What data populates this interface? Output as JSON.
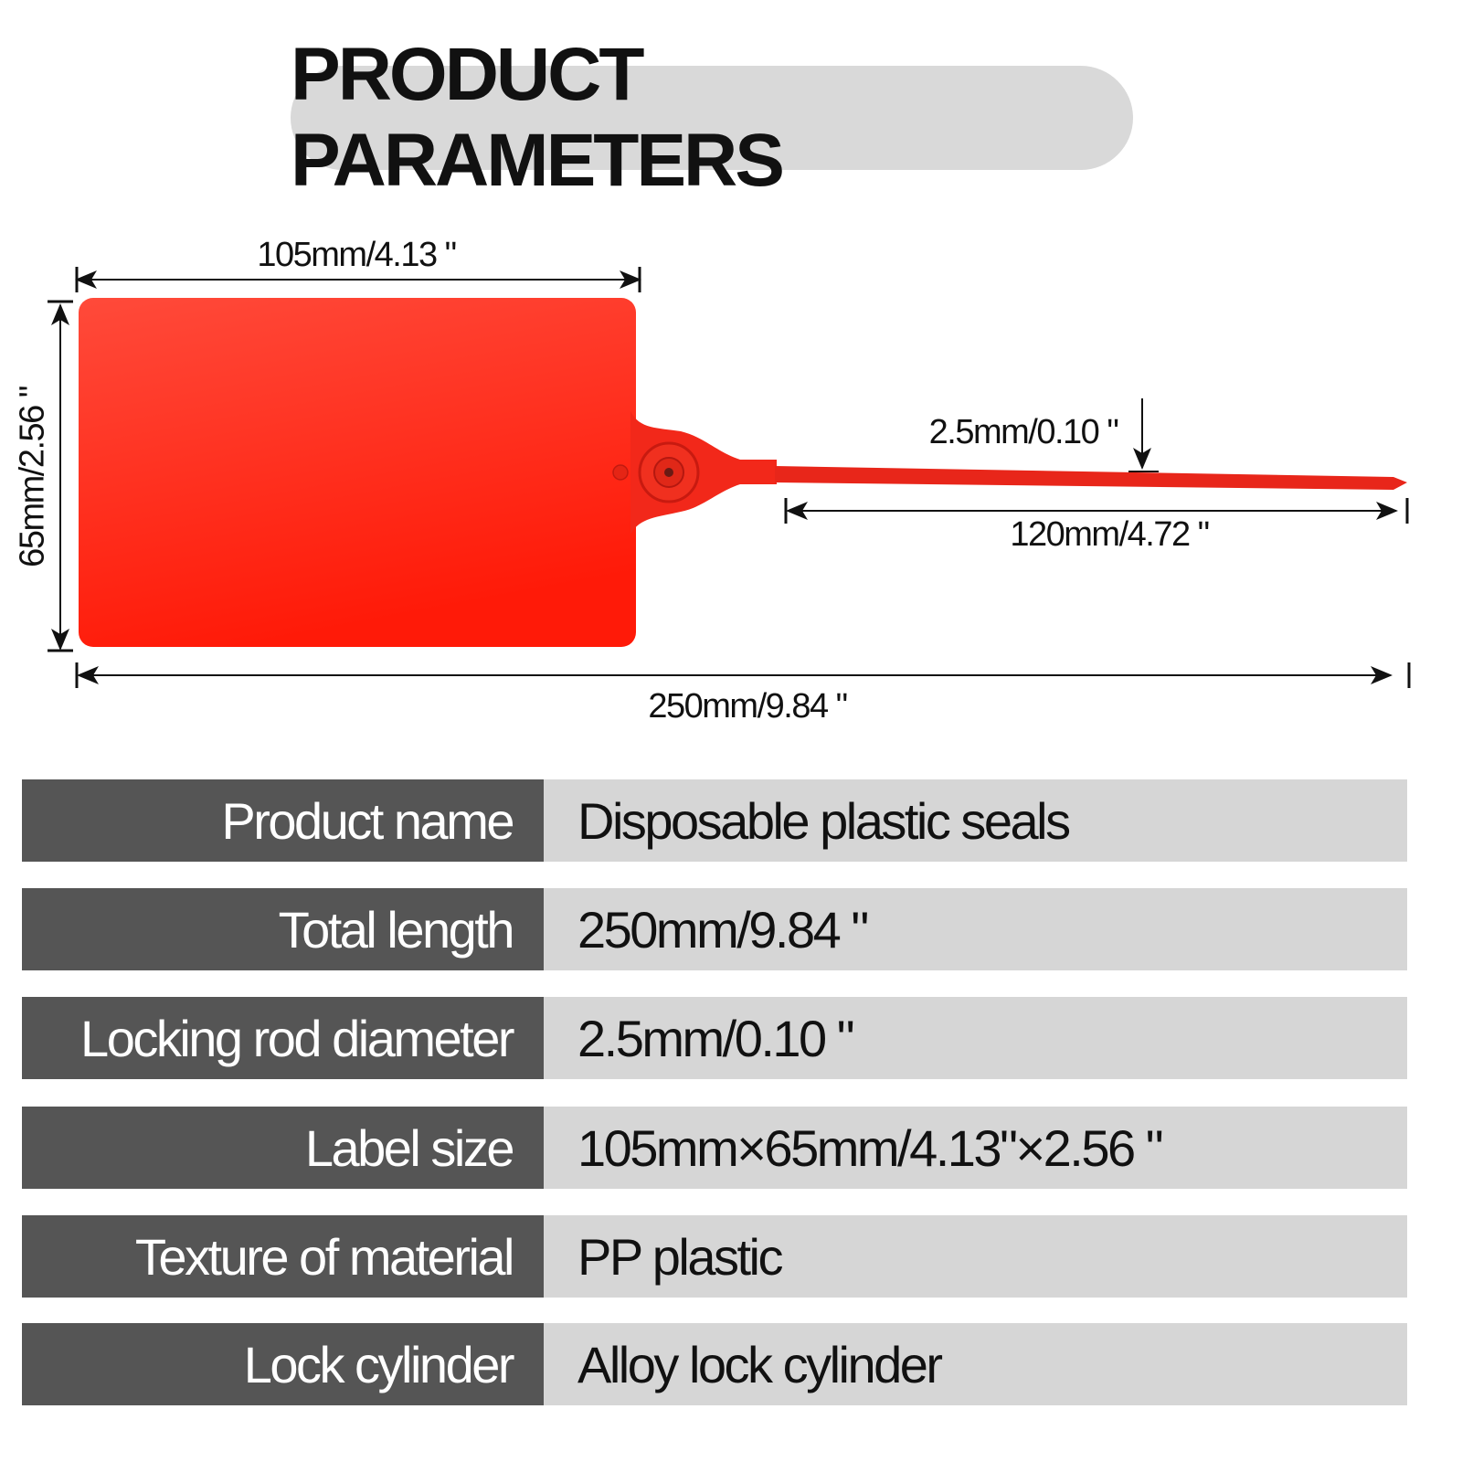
{
  "title": "PRODUCT PARAMETERS",
  "diagram": {
    "width_label": "105mm/4.13 \"",
    "height_label": "65mm/2.56 \"",
    "rod_diameter_label": "2.5mm/0.10 \"",
    "rod_length_label": "120mm/4.72 \"",
    "total_length_label": "250mm/9.84 \"",
    "seal_color": "#ff2a1a"
  },
  "params": [
    {
      "label": "Product name",
      "value": "Disposable plastic seals"
    },
    {
      "label": "Total length",
      "value": "250mm/9.84 \""
    },
    {
      "label": "Locking rod diameter",
      "value": "2.5mm/0.10 \""
    },
    {
      "label": "Label size",
      "value": "105mm×65mm/4.13\"×2.56 \""
    },
    {
      "label": "Texture of material",
      "value": "PP plastic"
    },
    {
      "label": "Lock cylinder",
      "value": "Alloy lock cylinder"
    }
  ]
}
